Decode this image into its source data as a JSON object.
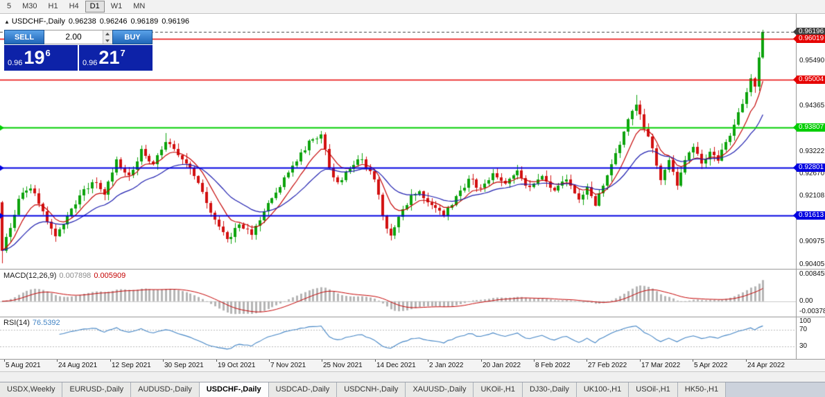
{
  "toolbar": {
    "timeframes": [
      "5",
      "M30",
      "H1",
      "H4",
      "D1",
      "W1",
      "MN"
    ],
    "active": "D1"
  },
  "chart_header": {
    "icon": "▲",
    "symbol": "USDCHF-,Daily",
    "open": "0.96238",
    "high": "0.96246",
    "low": "0.96189",
    "close": "0.96196"
  },
  "trade_panel": {
    "sell_label": "SELL",
    "buy_label": "BUY",
    "volume": "2.00",
    "bid": {
      "prefix": "0.96",
      "pips": "19",
      "point": "6"
    },
    "ask": {
      "prefix": "0.96",
      "pips": "21",
      "point": "7"
    }
  },
  "indicators": {
    "macd": {
      "name": "MACD(12,26,9)",
      "value_main": "0.007898",
      "value_signal": "0.005909"
    },
    "rsi": {
      "name": "RSI(14)",
      "value": "76.5392"
    }
  },
  "price_scale": {
    "ticks": [
      "0.95490",
      "0.94365",
      "0.93222",
      "0.92670",
      "0.92108",
      "0.90975",
      "0.90405"
    ]
  },
  "chart_data": {
    "type": "candlestick",
    "symbol": "USDCHF-,Daily",
    "timeframe": "Daily",
    "price_range": {
      "min": 0.9028,
      "max": 0.9665
    },
    "candle_count": 187,
    "first_open": 0.9195,
    "last_close": 0.96196,
    "up_color": "#0da30d",
    "down_color": "#d21111",
    "close_anchors": [
      [
        0,
        0.9075
      ],
      [
        2,
        0.913
      ],
      [
        4,
        0.92
      ],
      [
        7,
        0.923
      ],
      [
        10,
        0.917
      ],
      [
        13,
        0.911
      ],
      [
        16,
        0.916
      ],
      [
        19,
        0.921
      ],
      [
        22,
        0.9245
      ],
      [
        25,
        0.9215
      ],
      [
        28,
        0.93
      ],
      [
        31,
        0.926
      ],
      [
        34,
        0.9325
      ],
      [
        37,
        0.929
      ],
      [
        40,
        0.9345
      ],
      [
        43,
        0.931
      ],
      [
        46,
        0.928
      ],
      [
        49,
        0.922
      ],
      [
        52,
        0.915
      ],
      [
        55,
        0.91
      ],
      [
        58,
        0.914
      ],
      [
        61,
        0.9112
      ],
      [
        64,
        0.917
      ],
      [
        67,
        0.922
      ],
      [
        70,
        0.927
      ],
      [
        73,
        0.932
      ],
      [
        76,
        0.935
      ],
      [
        78,
        0.9365
      ],
      [
        80,
        0.928
      ],
      [
        82,
        0.9245
      ],
      [
        85,
        0.928
      ],
      [
        88,
        0.93
      ],
      [
        91,
        0.925
      ],
      [
        93,
        0.916
      ],
      [
        95,
        0.911
      ],
      [
        98,
        0.9175
      ],
      [
        100,
        0.921
      ],
      [
        102,
        0.922
      ],
      [
        104,
        0.9195
      ],
      [
        106,
        0.918
      ],
      [
        108,
        0.916
      ],
      [
        111,
        0.921
      ],
      [
        114,
        0.925
      ],
      [
        117,
        0.923
      ],
      [
        120,
        0.9265
      ],
      [
        123,
        0.924
      ],
      [
        126,
        0.9272
      ],
      [
        129,
        0.923
      ],
      [
        132,
        0.926
      ],
      [
        135,
        0.9225
      ],
      [
        138,
        0.9252
      ],
      [
        141,
        0.92
      ],
      [
        143,
        0.9232
      ],
      [
        145,
        0.9185
      ],
      [
        147,
        0.9235
      ],
      [
        149,
        0.929
      ],
      [
        151,
        0.934
      ],
      [
        153,
        0.94
      ],
      [
        155,
        0.9438
      ],
      [
        157,
        0.938
      ],
      [
        159,
        0.933
      ],
      [
        161,
        0.925
      ],
      [
        163,
        0.93
      ],
      [
        165,
        0.9235
      ],
      [
        167,
        0.93
      ],
      [
        169,
        0.9332
      ],
      [
        171,
        0.929
      ],
      [
        173,
        0.9322
      ],
      [
        175,
        0.9298
      ],
      [
        177,
        0.9342
      ],
      [
        179,
        0.9388
      ],
      [
        181,
        0.9442
      ],
      [
        183,
        0.9506
      ],
      [
        184,
        0.9482
      ],
      [
        185,
        0.9556
      ],
      [
        186,
        0.96196
      ]
    ],
    "wick_overrides": {
      "0": {
        "low": 0.9042
      },
      "40": {
        "high": 0.9368
      },
      "78": {
        "high": 0.9373
      },
      "155": {
        "high": 0.9462
      },
      "183": {
        "high": 0.9515
      },
      "186": {
        "high": 0.9625,
        "low": 0.9552
      }
    },
    "hlines": [
      {
        "price": 0.96196,
        "label": "0.96196",
        "color": "#3f3f3f",
        "style": "dash",
        "lw": 1,
        "marker": false
      },
      {
        "price": 0.96019,
        "label": "0.96019",
        "color": "#e60000",
        "style": "solid",
        "lw": 1.6,
        "marker": false
      },
      {
        "price": 0.95004,
        "label": "0.95004",
        "color": "#e60000",
        "style": "solid",
        "lw": 1.6,
        "marker": false
      },
      {
        "price": 0.93807,
        "label": "0.93807",
        "color": "#00ce00",
        "style": "solid",
        "lw": 2,
        "marker": true
      },
      {
        "price": 0.92801,
        "label": "0.92801",
        "color": "#0000e0",
        "style": "solid",
        "lw": 2,
        "marker": true
      },
      {
        "price": 0.91613,
        "label": "0.91613",
        "color": "#0000e0",
        "style": "solid",
        "lw": 2,
        "marker": true
      }
    ],
    "ma": [
      {
        "period": 8,
        "color": "#c40000"
      },
      {
        "period": 21,
        "color": "#1c1cae"
      }
    ],
    "macd": {
      "fast": 12,
      "slow": 26,
      "signal": 9,
      "hist_color": "#b5b5b5",
      "signal_color": "#c40000",
      "range": [
        -0.0045,
        0.0095
      ],
      "axis": [
        {
          "label": "0.008455",
          "v": 0.008455
        },
        {
          "label": "0.00",
          "v": 0
        },
        {
          "label": "-0.00378",
          "v": -0.00378
        }
      ]
    },
    "rsi": {
      "period": 14,
      "color": "#4183c4",
      "levels": [
        70,
        30
      ],
      "axis": [
        {
          "label": "100",
          "v": 100
        },
        {
          "label": "70",
          "v": 70
        },
        {
          "label": "30",
          "v": 30
        }
      ]
    },
    "dates": [
      "5 Aug 2021",
      "24 Aug 2021",
      "12 Sep 2021",
      "30 Sep 2021",
      "19 Oct 2021",
      "7 Nov 2021",
      "25 Nov 2021",
      "14 Dec 2021",
      "2 Jan 2022",
      "20 Jan 2022",
      "8 Feb 2022",
      "27 Feb 2022",
      "17 Mar 2022",
      "5 Apr 2022",
      "24 Apr 2022"
    ]
  },
  "tabs": {
    "items": [
      "USDX,Weekly",
      "EURUSD-,Daily",
      "AUDUSD-,Daily",
      "USDCHF-,Daily",
      "USDCAD-,Daily",
      "USDCNH-,Daily",
      "XAUUSD-,Daily",
      "UKOil-,H1",
      "DJ30-,Daily",
      "UK100-,H1",
      "USOil-,H1",
      "HK50-,H1"
    ],
    "active": "USDCHF-,Daily"
  }
}
